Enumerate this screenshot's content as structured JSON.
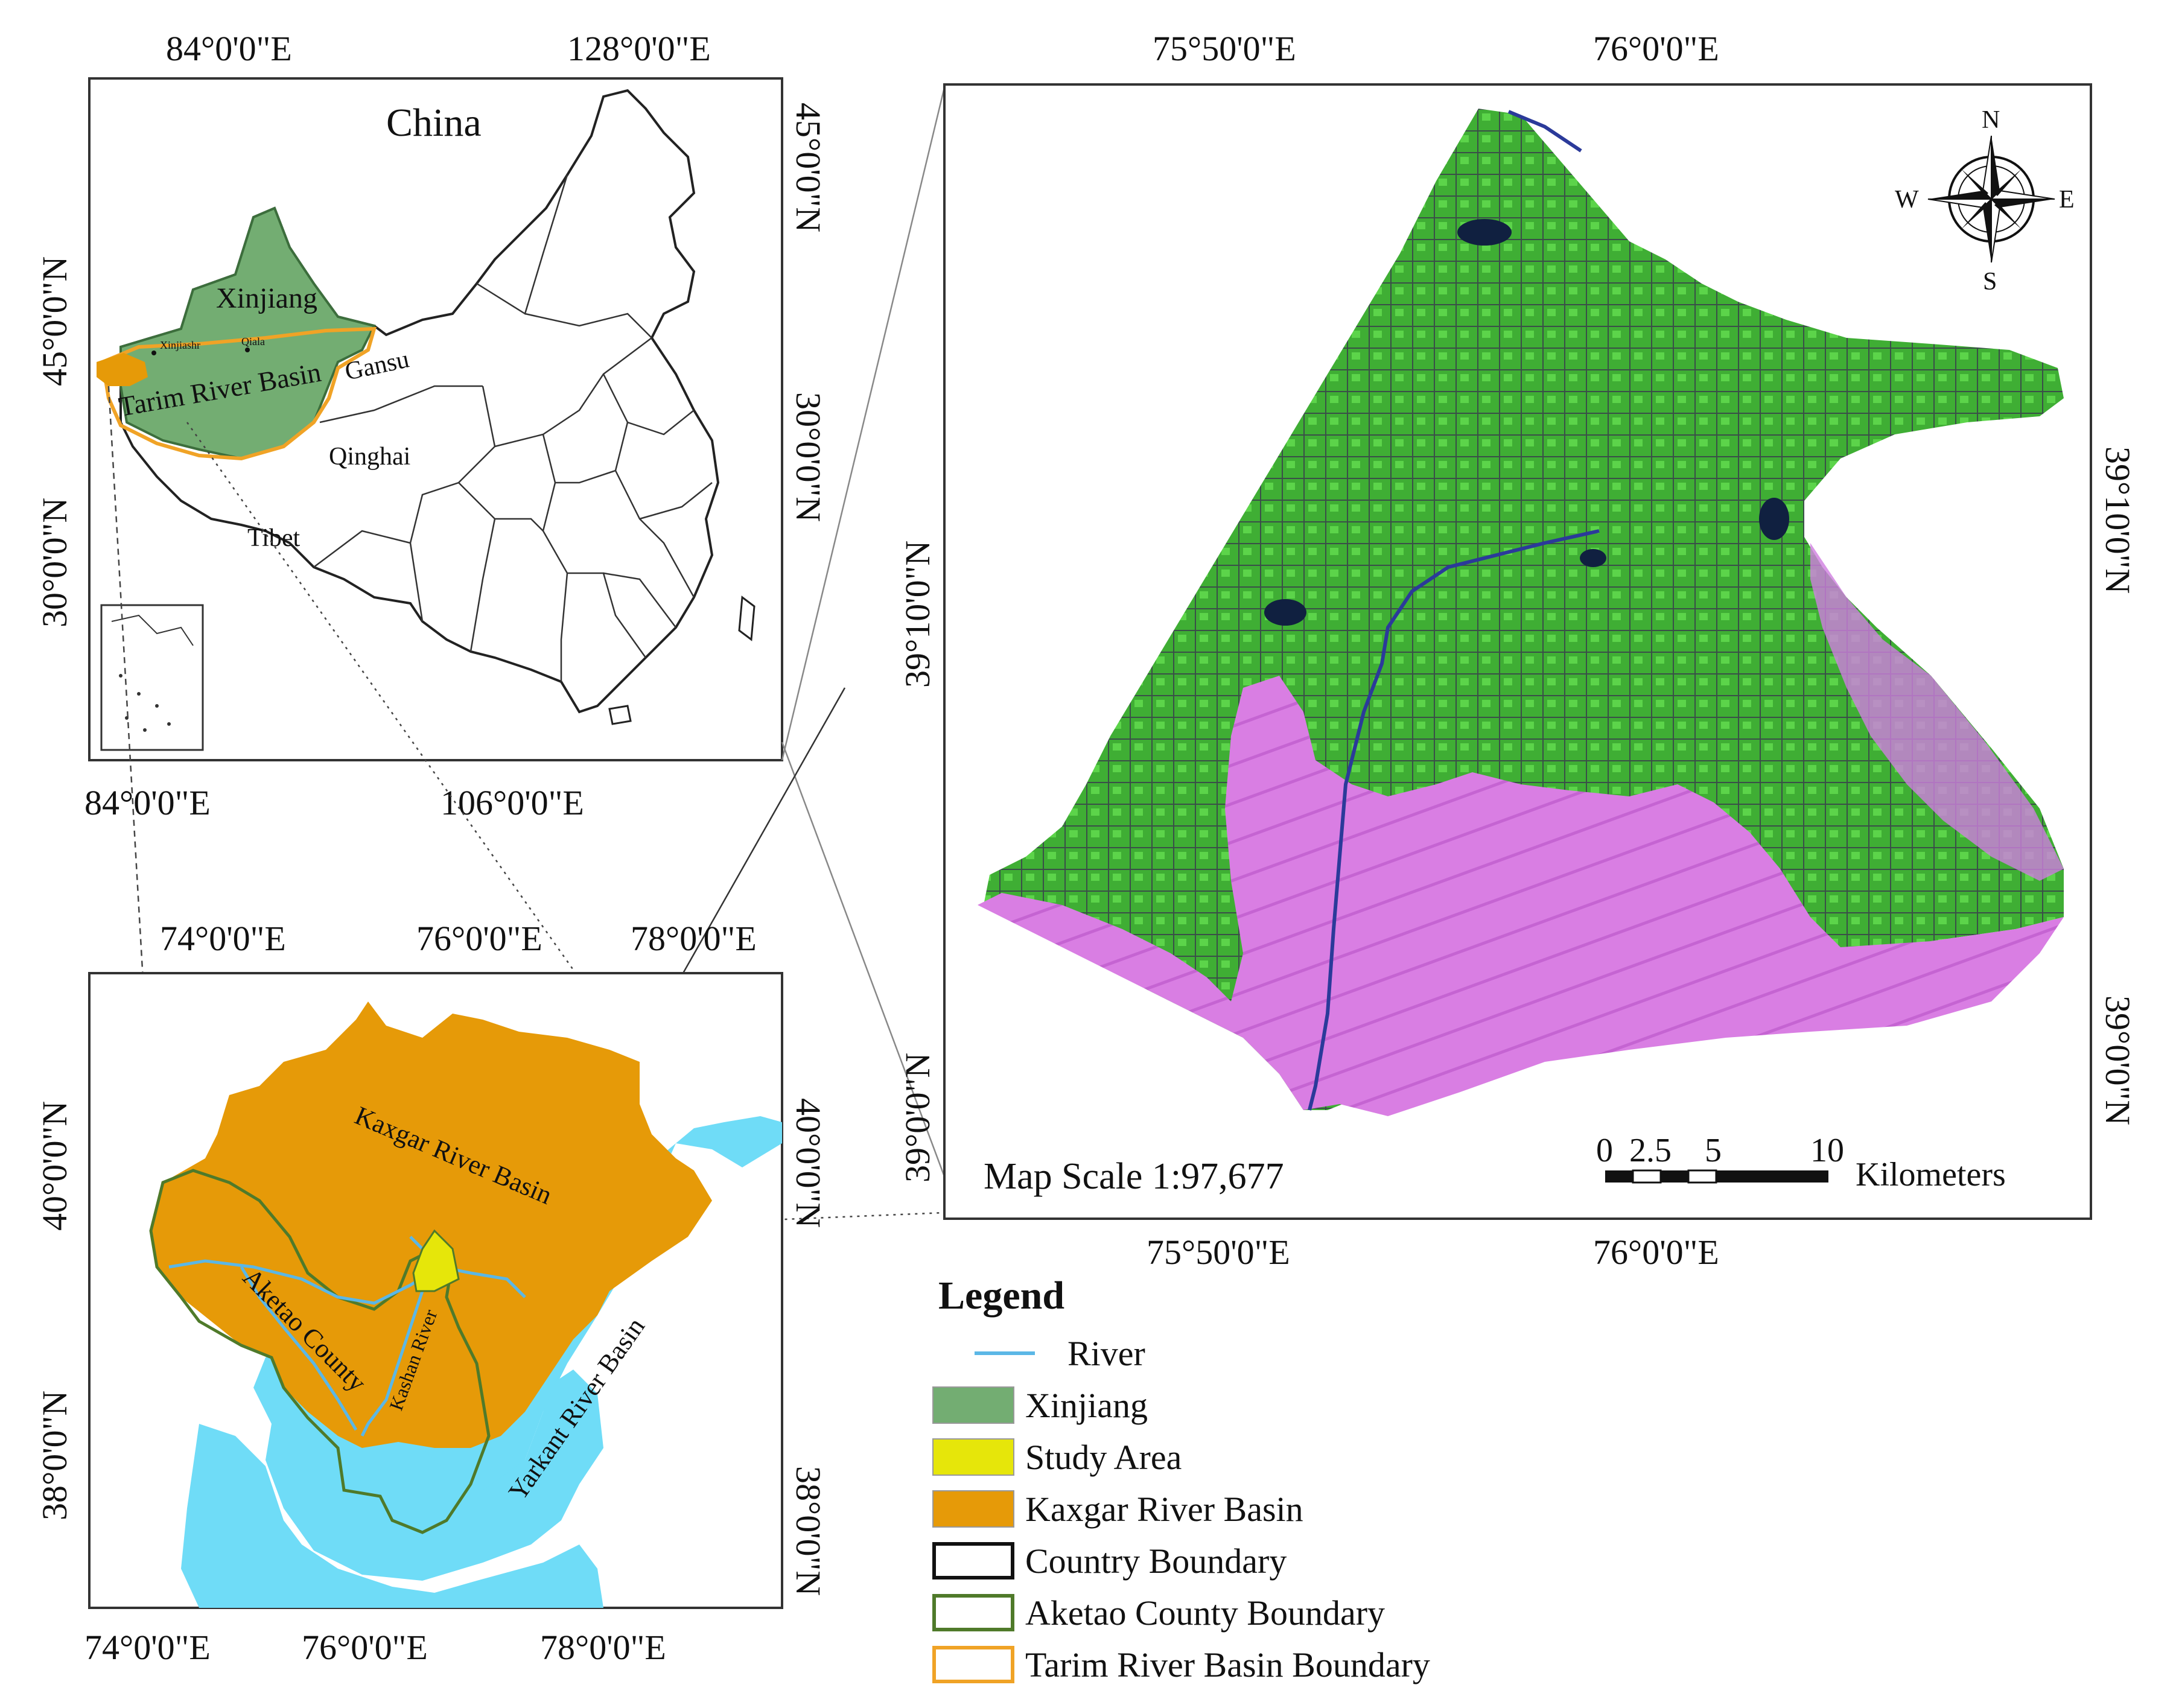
{
  "top_left_map": {
    "title": "China",
    "top_lon_labels": [
      "84°0'0\"E",
      "128°0'0\"E"
    ],
    "bottom_lon_labels": [
      "84°0'0\"E",
      "106°0'0\"E"
    ],
    "left_lat_labels": [
      "45°0'0\"N",
      "30°0'0\"N"
    ],
    "right_lat_labels": [
      "45°0'0\"N",
      "30°0'0\"N"
    ],
    "place_labels": {
      "xinjiang": "Xinjiang",
      "tarim": "Tarim River Basin",
      "gansu": "Gansu",
      "qinghai": "Qinghai",
      "tibet": "Tibet",
      "city_a": "Xinjiashr",
      "city_b": "Qiala"
    }
  },
  "bottom_left_map": {
    "top_lon_labels": [
      "74°0'0\"E",
      "76°0'0\"E",
      "78°0'0\"E"
    ],
    "bottom_lon_labels": [
      "74°0'0\"E",
      "76°0'0\"E",
      "78°0'0\"E"
    ],
    "left_lat_labels": [
      "40°0'0\"N",
      "38°0'0\"N"
    ],
    "right_lat_labels": [
      "40°0'0\"N",
      "38°0'0\"N"
    ],
    "place_labels": {
      "kaxgar": "Kaxgar River Basin",
      "aketao": "Aketao County",
      "kashan": "Kashan River",
      "yarkant": "Yarkant River Basin"
    }
  },
  "right_map": {
    "top_lon_labels": [
      "75°50'0\"E",
      "76°0'0\"E"
    ],
    "bottom_lon_labels": [
      "75°50'0\"E",
      "76°0'0\"E"
    ],
    "left_lat_labels": [
      "39°10'0\"N",
      "39°0'0\"N"
    ],
    "right_lat_labels": [
      "39°10'0\"N",
      "39°0'0\"N"
    ],
    "map_scale": "Map Scale 1:97,677",
    "scalebar_ticks": [
      "0",
      "2.5",
      "5",
      "10"
    ],
    "scalebar_unit": "Kilometers",
    "compass": {
      "n": "N",
      "s": "S",
      "e": "E",
      "w": "W"
    }
  },
  "legend": {
    "title": "Legend",
    "items": [
      {
        "label": "River",
        "kind": "line",
        "color": "#5bb7e6"
      },
      {
        "label": "Xinjiang",
        "kind": "fill",
        "color": "#73ad72"
      },
      {
        "label": "Study Area",
        "kind": "fill",
        "color": "#e6e60a"
      },
      {
        "label": "Kaxgar River Basin",
        "kind": "fill",
        "color": "#e69a08"
      },
      {
        "label": "Country Boundary",
        "kind": "outline",
        "color": "#111111"
      },
      {
        "label": "Aketao County Boundary",
        "kind": "outline",
        "color": "#4f7a2a"
      },
      {
        "label": "Tarim River Basin Boundary",
        "kind": "outline",
        "color": "#f0a326"
      }
    ]
  },
  "colors": {
    "xinjiang": "#73ad72",
    "kaxgar": "#e69a08",
    "yarkant": "#6fdcf7",
    "study_area": "#e6e60a",
    "aketao_boundary": "#4f7a2a",
    "tarim_boundary": "#f0a326",
    "imagery_green": "#44b83a",
    "imagery_magenta": "#d676e0",
    "river": "#5bb7e6"
  }
}
